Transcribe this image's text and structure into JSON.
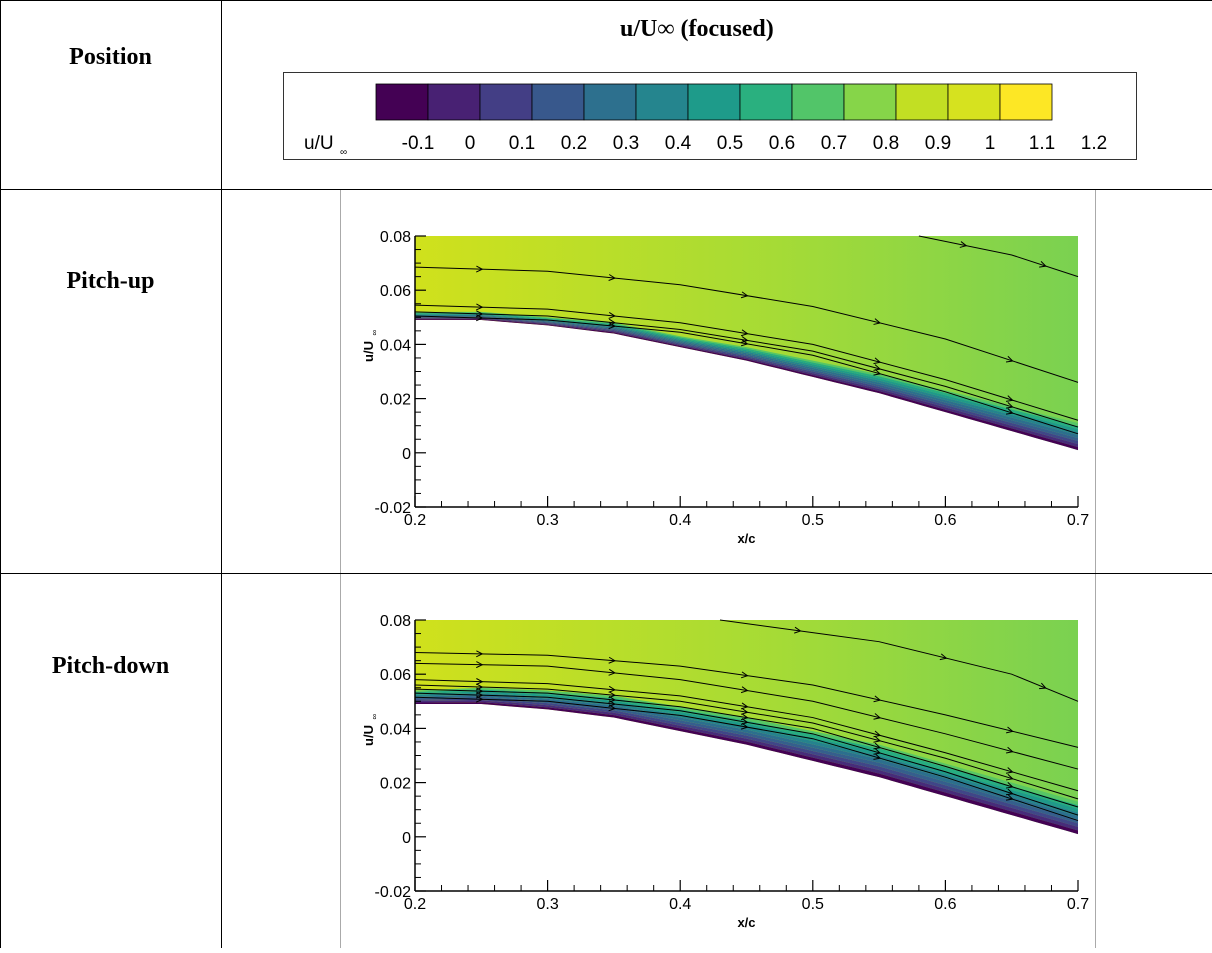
{
  "table": {
    "header_position": "Position",
    "header_field": "u/U∞ (focused)",
    "row_labels": [
      "Pitch-up",
      "Pitch-down"
    ]
  },
  "colorbar": {
    "title_main": "u/U",
    "title_sub": "∞",
    "levels": [
      -0.15,
      -0.1,
      -0.05,
      0,
      0.05,
      0.1,
      0.15,
      0.2,
      0.25,
      0.3,
      0.35,
      0.4,
      0.45,
      0.5,
      0.55,
      0.6,
      0.65,
      0.7,
      0.75,
      0.8,
      0.85,
      0.9,
      0.95,
      1.0,
      1.05,
      1.1,
      1.15,
      1.2,
      1.25
    ],
    "tick_labels": [
      "-0.1",
      "0",
      "0.1",
      "0.2",
      "0.3",
      "0.4",
      "0.5",
      "0.6",
      "0.7",
      "0.8",
      "0.9",
      "1",
      "1.1",
      "1.2"
    ],
    "colors": [
      "#440154",
      "#482173",
      "#433e85",
      "#38588c",
      "#2d708e",
      "#25858e",
      "#1e9b8a",
      "#2ab07f",
      "#52c569",
      "#86d549",
      "#c2df23",
      "#d6e21f",
      "#fde725"
    ]
  },
  "chart_data": [
    {
      "type": "heatmap",
      "title": "Pitch-up",
      "xlabel": "x/c",
      "ylabel_main": "u/U",
      "ylabel_sub": "∞",
      "xlim": [
        0.2,
        0.7
      ],
      "ylim": [
        -0.02,
        0.08
      ],
      "xticks": [
        0.2,
        0.3,
        0.4,
        0.5,
        0.6,
        0.7
      ],
      "xtick_labels": [
        "0.2",
        "0.3",
        "0.4",
        "0.5",
        "0.6",
        "0.7"
      ],
      "yticks": [
        -0.02,
        0,
        0.02,
        0.04,
        0.06,
        0.08
      ],
      "ytick_labels": [
        "-0.02",
        "0",
        "0.02",
        "0.04",
        "0.06",
        "0.08"
      ],
      "surface": {
        "x": [
          0.2,
          0.25,
          0.3,
          0.35,
          0.4,
          0.45,
          0.5,
          0.55,
          0.6,
          0.65,
          0.7
        ],
        "y": [
          0.049,
          0.049,
          0.047,
          0.044,
          0.039,
          0.034,
          0.028,
          0.022,
          0.015,
          0.008,
          0.001
        ]
      },
      "boundary_layer_thickness": [
        0.003,
        0.003,
        0.003,
        0.004,
        0.004,
        0.005,
        0.006,
        0.007,
        0.008,
        0.009,
        0.01
      ],
      "streamlines": [
        {
          "x": [
            0.2,
            0.3,
            0.4,
            0.5,
            0.6,
            0.7
          ],
          "y": [
            0.0685,
            0.067,
            0.062,
            0.054,
            0.042,
            0.026
          ]
        },
        {
          "x": [
            0.58,
            0.65,
            0.7
          ],
          "y": [
            0.08,
            0.073,
            0.065
          ]
        },
        {
          "x": [
            0.2,
            0.3,
            0.4,
            0.5,
            0.6,
            0.7
          ],
          "y": [
            0.0545,
            0.053,
            0.048,
            0.04,
            0.027,
            0.012
          ]
        },
        {
          "x": [
            0.2,
            0.3,
            0.4,
            0.5,
            0.6,
            0.7
          ],
          "y": [
            0.052,
            0.0505,
            0.0455,
            0.0375,
            0.0245,
            0.0095
          ]
        },
        {
          "x": [
            0.2,
            0.3,
            0.4,
            0.5,
            0.6,
            0.7
          ],
          "y": [
            0.0505,
            0.049,
            0.0445,
            0.036,
            0.0225,
            0.007
          ]
        }
      ]
    },
    {
      "type": "heatmap",
      "title": "Pitch-down",
      "xlabel": "x/c",
      "ylabel_main": "u/U",
      "ylabel_sub": "∞",
      "xlim": [
        0.2,
        0.7
      ],
      "ylim": [
        -0.02,
        0.08
      ],
      "xticks": [
        0.2,
        0.3,
        0.4,
        0.5,
        0.6,
        0.7
      ],
      "xtick_labels": [
        "0.2",
        "0.3",
        "0.4",
        "0.5",
        "0.6",
        "0.7"
      ],
      "yticks": [
        -0.02,
        0,
        0.02,
        0.04,
        0.06,
        0.08
      ],
      "ytick_labels": [
        "-0.02",
        "0",
        "0.02",
        "0.04",
        "0.06",
        "0.08"
      ],
      "surface": {
        "x": [
          0.2,
          0.25,
          0.3,
          0.35,
          0.4,
          0.45,
          0.5,
          0.55,
          0.6,
          0.65,
          0.7
        ],
        "y": [
          0.049,
          0.049,
          0.047,
          0.044,
          0.039,
          0.034,
          0.028,
          0.022,
          0.015,
          0.008,
          0.001
        ]
      },
      "boundary_layer_thickness": [
        0.005,
        0.006,
        0.007,
        0.008,
        0.009,
        0.01,
        0.011,
        0.012,
        0.012,
        0.012,
        0.012
      ],
      "streamlines": [
        {
          "x": [
            0.2,
            0.3,
            0.4,
            0.5,
            0.6,
            0.7
          ],
          "y": [
            0.068,
            0.067,
            0.063,
            0.056,
            0.045,
            0.033
          ]
        },
        {
          "x": [
            0.43,
            0.55,
            0.65,
            0.7
          ],
          "y": [
            0.08,
            0.072,
            0.06,
            0.05
          ]
        },
        {
          "x": [
            0.2,
            0.3,
            0.4,
            0.5,
            0.6,
            0.7
          ],
          "y": [
            0.064,
            0.063,
            0.058,
            0.05,
            0.038,
            0.025
          ]
        },
        {
          "x": [
            0.2,
            0.3,
            0.4,
            0.5,
            0.6,
            0.7
          ],
          "y": [
            0.058,
            0.0565,
            0.052,
            0.044,
            0.031,
            0.017
          ]
        },
        {
          "x": [
            0.2,
            0.3,
            0.4,
            0.5,
            0.6,
            0.7
          ],
          "y": [
            0.056,
            0.0545,
            0.05,
            0.042,
            0.029,
            0.014
          ]
        },
        {
          "x": [
            0.2,
            0.3,
            0.4,
            0.5,
            0.6,
            0.7
          ],
          "y": [
            0.0545,
            0.053,
            0.048,
            0.04,
            0.026,
            0.011
          ]
        },
        {
          "x": [
            0.2,
            0.3,
            0.4,
            0.5,
            0.6,
            0.7
          ],
          "y": [
            0.053,
            0.0515,
            0.0465,
            0.038,
            0.024,
            0.008
          ]
        },
        {
          "x": [
            0.2,
            0.3,
            0.4,
            0.5,
            0.6,
            0.7
          ],
          "y": [
            0.0515,
            0.05,
            0.0448,
            0.0362,
            0.022,
            0.006
          ]
        }
      ]
    }
  ]
}
